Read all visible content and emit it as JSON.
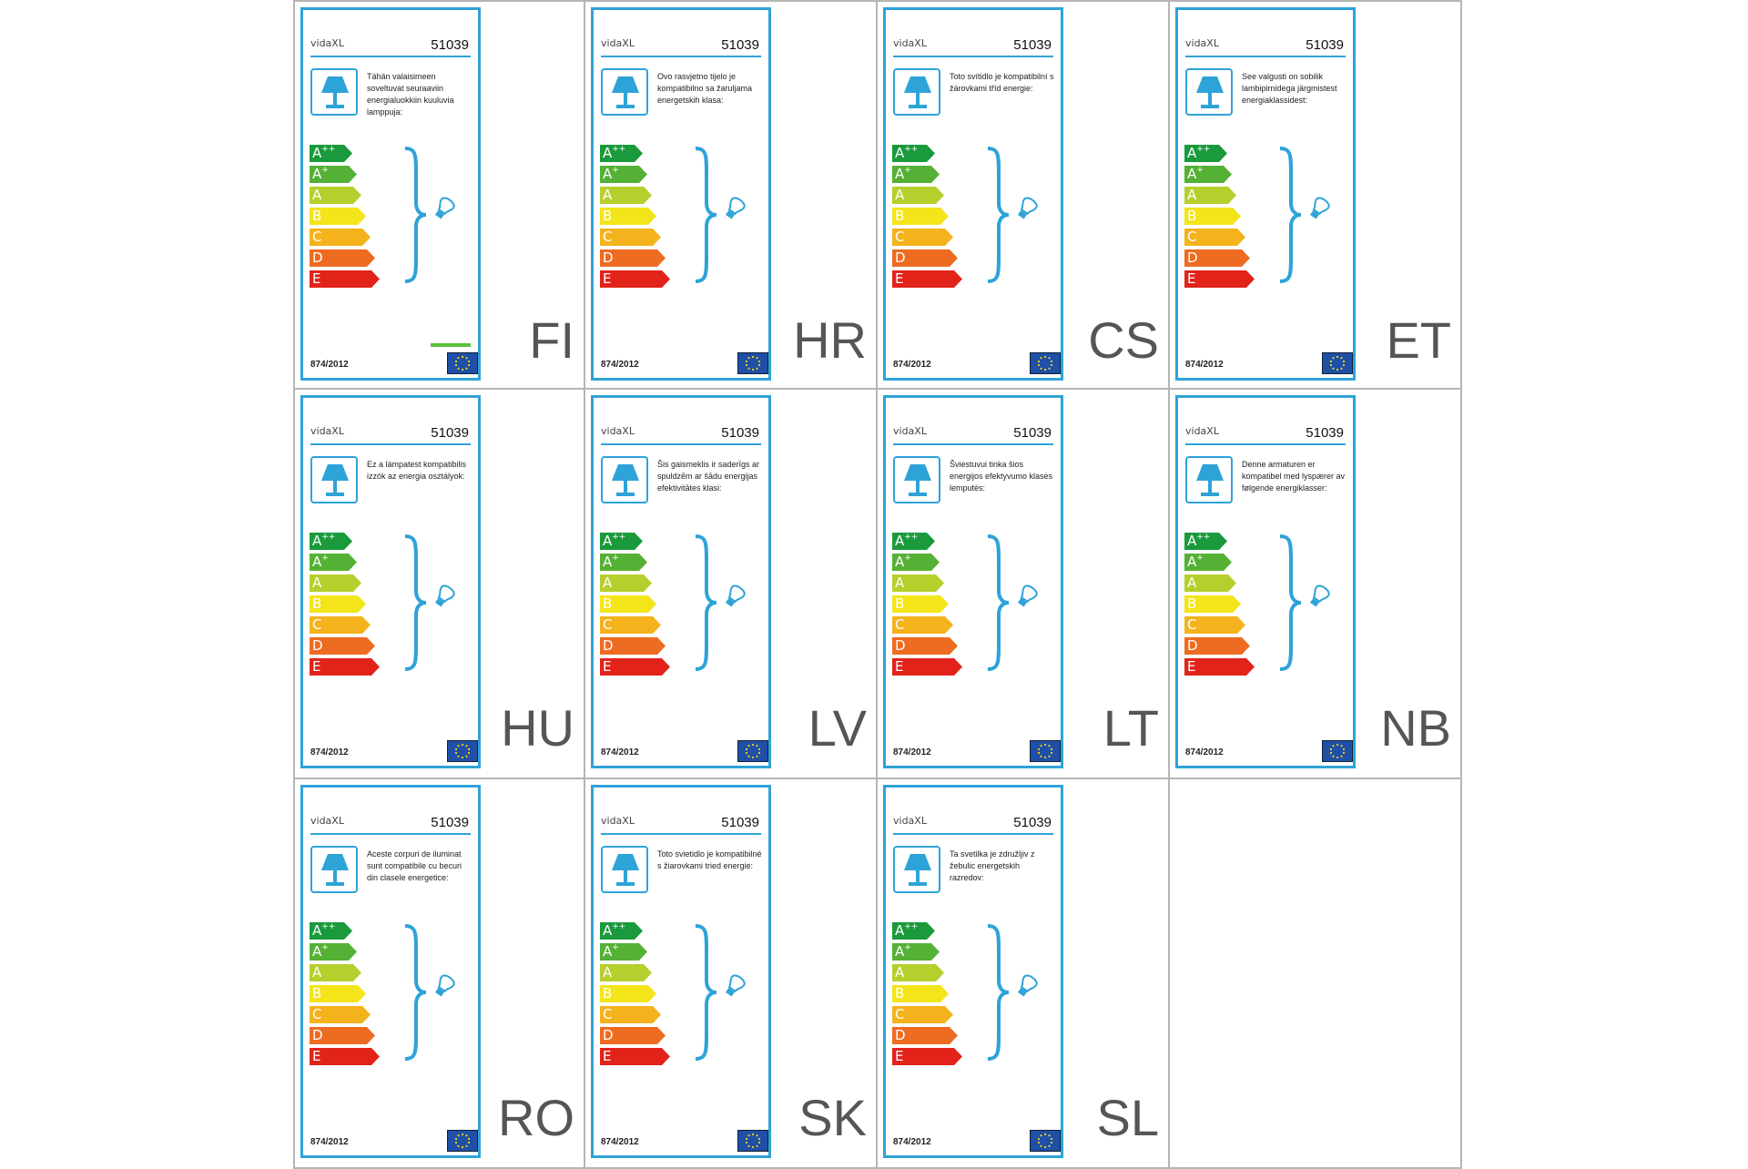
{
  "brand": "vidaXL",
  "model_number": "51039",
  "regulation": "874/2012",
  "energy_classes": [
    {
      "letter": "A",
      "sup": "++",
      "color": "#1a9a3c",
      "len": 38
    },
    {
      "letter": "A",
      "sup": "+",
      "color": "#55b135",
      "len": 43
    },
    {
      "letter": "A",
      "sup": "",
      "color": "#b7cf2c",
      "len": 48
    },
    {
      "letter": "B",
      "sup": "",
      "color": "#f3e51a",
      "len": 53
    },
    {
      "letter": "C",
      "sup": "",
      "color": "#f4b31c",
      "len": 58
    },
    {
      "letter": "D",
      "sup": "",
      "color": "#ee6b22",
      "len": 63
    },
    {
      "letter": "E",
      "sup": "",
      "color": "#e2231a",
      "len": 68
    }
  ],
  "labels": [
    {
      "lang": "FI",
      "text": "Tähän valaisimeen soveltuvat seuraaviin energialuokkiin kuuluvia lamppuja:"
    },
    {
      "lang": "HR",
      "text": "Ovo rasvjetno tijelo je kompatibilno sa žaruljama energetskih klasa:"
    },
    {
      "lang": "CS",
      "text": "Toto svítidlo je kompatibilní s žárovkami tříd energie:"
    },
    {
      "lang": "ET",
      "text": "See valgusti on sobilik lambipirnidega järgmistest energiaklassidest:"
    },
    {
      "lang": "HU",
      "text": "Ez a lámpatest kompatibilis izzók az energia osztályok:"
    },
    {
      "lang": "LV",
      "text": "Šis gaismeklis ir saderīgs ar spuldzēm ar šādu energijas efektivitātes klasi:"
    },
    {
      "lang": "LT",
      "text": "Šviestuvui tinka šios energijos efektyvumo klasės lemputės:"
    },
    {
      "lang": "NB",
      "text": "Denne armaturen er kompatibel med lyspærer av følgende energiklasser:"
    },
    {
      "lang": "RO",
      "text": "Aceste corpuri de iluminat sunt compatibile cu becuri din clasele energetice:"
    },
    {
      "lang": "SK",
      "text": "Toto svietidlo je kompatibilné s žiarovkami tried energie:"
    },
    {
      "lang": "SL",
      "text": "Ta svetilka je združljiv z žebulic energetskih razredov:"
    }
  ]
}
